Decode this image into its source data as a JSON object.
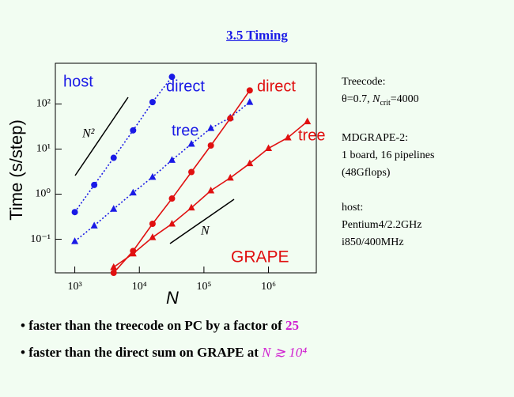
{
  "title": "3.5 Timing",
  "chart_data": {
    "type": "line",
    "x_scale": "log",
    "y_scale": "log",
    "x_label": "N",
    "y_label": "Time (s/step)",
    "xlim": [
      500,
      5500000
    ],
    "ylim": [
      0.018,
      800
    ],
    "xticks": [
      {
        "value": 1000,
        "label": "10³"
      },
      {
        "value": 10000,
        "label": "10⁴"
      },
      {
        "value": 100000,
        "label": "10⁵"
      },
      {
        "value": 1000000,
        "label": "10⁶"
      }
    ],
    "yticks": [
      {
        "value": 0.1,
        "label": "10⁻¹"
      },
      {
        "value": 1,
        "label": "10⁰"
      },
      {
        "value": 10,
        "label": "10¹"
      },
      {
        "value": 100,
        "label": "10²"
      }
    ],
    "series": [
      {
        "name": "direct",
        "color": "#1a1ae6",
        "marker": "circle",
        "line_style": "dotted",
        "x": [
          1000,
          2000,
          4000,
          8000,
          16000,
          32000
        ],
        "values": [
          0.4,
          1.6,
          6.4,
          26,
          110,
          400
        ]
      },
      {
        "name": "tree",
        "color": "#1a1ae6",
        "marker": "triangle",
        "line_style": "dotted",
        "x": [
          1000,
          2000,
          4000,
          8000,
          16000,
          32000,
          64000,
          128000,
          256000,
          512000
        ],
        "values": [
          0.09,
          0.2,
          0.47,
          1.08,
          2.4,
          5.7,
          13,
          29,
          50,
          110
        ]
      },
      {
        "name": "direct",
        "color": "#e01010",
        "marker": "circle",
        "line_style": "solid",
        "x": [
          4000,
          8000,
          16000,
          32000,
          64000,
          128000,
          256000,
          512000
        ],
        "values": [
          0.018,
          0.055,
          0.22,
          0.8,
          3.1,
          12,
          48,
          200
        ]
      },
      {
        "name": "tree",
        "color": "#e01010",
        "marker": "triangle",
        "line_style": "solid",
        "x": [
          4000,
          8000,
          16000,
          32000,
          64000,
          128000,
          256000,
          512000,
          1000000,
          2000000,
          4000000
        ],
        "values": [
          0.024,
          0.048,
          0.11,
          0.22,
          0.5,
          1.2,
          2.3,
          4.8,
          10.4,
          18,
          41
        ]
      }
    ],
    "annotations": [
      "host",
      "GRAPE",
      "N²",
      "N"
    ]
  },
  "notes": [
    {
      "label": "Treecode:",
      "theta": "θ=0.7, ",
      "n": "N",
      "sub": "crit",
      "value": "=4000"
    },
    {
      "label": "MDGRAPE-2:",
      "line1": "1 board, 16 pipelines",
      "line2": "(48Gflops)"
    },
    {
      "label": "host:",
      "line1": "Pentium4/2.2GHz",
      "line2": "i850/400MHz"
    }
  ],
  "bullets": [
    {
      "text": "faster than the treecode on PC by a factor of ",
      "highlight": "25"
    },
    {
      "text": "faster than the direct sum on GRAPE at ",
      "highlight": "N ≳ 10⁴"
    }
  ]
}
